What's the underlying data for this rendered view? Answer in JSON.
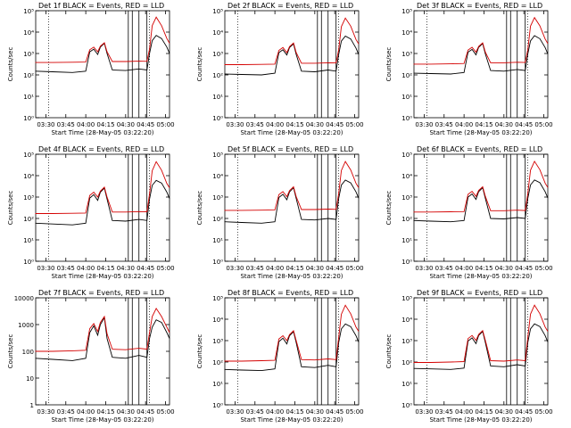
{
  "figure": {
    "xlabel": "Start Time (28-May-05 03:22:20)",
    "ylabel": "Counts/sec",
    "legend_text": "BLACK = Events, RED = LLD",
    "x_ticks": [
      "03:30",
      "03:45",
      "04:00",
      "04:15",
      "04:30",
      "04:45",
      "05:00"
    ],
    "colors": {
      "events": "#000000",
      "lld": "#d40000",
      "axes": "#000000"
    }
  },
  "chart_data": [
    {
      "type": "line",
      "title": "Det 1f BLACK = Events, RED = LLD",
      "xlabel": "Start Time (28-May-05 03:22:20)",
      "ylabel": "Counts/sec",
      "xlim": [
        "03:22:20",
        "05:03:00"
      ],
      "ylim": [
        1,
        100000
      ],
      "yscale": "log",
      "y_ticks": [
        "10^0",
        "10^1",
        "10^2",
        "10^3",
        "10^4",
        "10^5"
      ],
      "dotted_lines_x": [
        "03:32",
        "04:48"
      ],
      "solid_lines_x": [
        "04:32",
        "04:35",
        "04:40",
        "04:46"
      ],
      "x": [
        "03:22",
        "03:35",
        "03:50",
        "04:00",
        "04:03",
        "04:06",
        "04:09",
        "04:11",
        "04:14",
        "04:16",
        "04:20",
        "04:30",
        "04:40",
        "04:46",
        "04:48",
        "04:50",
        "04:53",
        "04:57",
        "05:01",
        "05:03"
      ],
      "series": [
        {
          "name": "Events",
          "values": [
            150,
            140,
            130,
            150,
            1200,
            1600,
            900,
            2000,
            3000,
            1000,
            170,
            160,
            190,
            170,
            1000,
            4000,
            7000,
            5000,
            2000,
            1000
          ]
        },
        {
          "name": "LLD",
          "values": [
            380,
            380,
            390,
            400,
            1500,
            2000,
            1200,
            2200,
            3200,
            1200,
            420,
            420,
            440,
            430,
            1600,
            20000,
            50000,
            20000,
            5000,
            3000
          ]
        }
      ]
    },
    {
      "type": "line",
      "title": "Det 2f BLACK = Events, RED = LLD",
      "xlabel": "Start Time (28-May-05 03:22:20)",
      "ylabel": "Counts/sec",
      "xlim": [
        "03:22:20",
        "05:03:00"
      ],
      "ylim": [
        1,
        100000
      ],
      "yscale": "log",
      "y_ticks": [
        "10^0",
        "10^1",
        "10^2",
        "10^3",
        "10^4",
        "10^5"
      ],
      "dotted_lines_x": [
        "03:32",
        "04:48"
      ],
      "solid_lines_x": [
        "04:32",
        "04:35",
        "04:40",
        "04:46"
      ],
      "x": [
        "03:22",
        "03:35",
        "03:50",
        "04:00",
        "04:03",
        "04:06",
        "04:09",
        "04:11",
        "04:14",
        "04:16",
        "04:20",
        "04:30",
        "04:40",
        "04:46",
        "04:48",
        "04:50",
        "04:53",
        "04:57",
        "05:01",
        "05:03"
      ],
      "series": [
        {
          "name": "Events",
          "values": [
            110,
            105,
            100,
            120,
            1100,
            1500,
            850,
            1900,
            2800,
            900,
            150,
            140,
            170,
            150,
            900,
            3800,
            6500,
            4800,
            1800,
            900
          ]
        },
        {
          "name": "LLD",
          "values": [
            300,
            300,
            310,
            320,
            1400,
            1900,
            1100,
            2100,
            3100,
            1100,
            350,
            350,
            370,
            360,
            1500,
            18000,
            45000,
            19000,
            4500,
            2800
          ]
        }
      ]
    },
    {
      "type": "line",
      "title": "Det 3f BLACK = Events, RED = LLD",
      "xlabel": "Start Time (28-May-05 03:22:20)",
      "ylabel": "Counts/sec",
      "xlim": [
        "03:22:20",
        "05:03:00"
      ],
      "ylim": [
        1,
        100000
      ],
      "yscale": "log",
      "y_ticks": [
        "10^0",
        "10^1",
        "10^2",
        "10^3",
        "10^4",
        "10^5"
      ],
      "dotted_lines_x": [
        "03:32",
        "04:48"
      ],
      "solid_lines_x": [
        "04:32",
        "04:35",
        "04:40",
        "04:46"
      ],
      "x": [
        "03:22",
        "03:35",
        "03:50",
        "04:00",
        "04:03",
        "04:06",
        "04:09",
        "04:11",
        "04:14",
        "04:16",
        "04:20",
        "04:30",
        "04:40",
        "04:46",
        "04:48",
        "04:50",
        "04:53",
        "04:57",
        "05:01",
        "05:03"
      ],
      "series": [
        {
          "name": "Events",
          "values": [
            120,
            115,
            110,
            130,
            1150,
            1550,
            870,
            1950,
            2900,
            950,
            160,
            150,
            180,
            160,
            950,
            3900,
            6800,
            4900,
            1900,
            950
          ]
        },
        {
          "name": "LLD",
          "values": [
            320,
            320,
            330,
            340,
            1450,
            1950,
            1150,
            2150,
            3150,
            1150,
            370,
            370,
            390,
            380,
            1550,
            19000,
            48000,
            19500,
            4800,
            2900
          ]
        }
      ]
    },
    {
      "type": "line",
      "title": "Det 4f BLACK = Events, RED = LLD",
      "xlabel": "Start Time (28-May-05 03:22:20)",
      "ylabel": "Counts/sec",
      "xlim": [
        "03:22:20",
        "05:03:00"
      ],
      "ylim": [
        1,
        100000
      ],
      "yscale": "log",
      "y_ticks": [
        "10^0",
        "10^1",
        "10^2",
        "10^3",
        "10^4",
        "10^5"
      ],
      "dotted_lines_x": [
        "03:32",
        "04:48"
      ],
      "solid_lines_x": [
        "04:32",
        "04:35",
        "04:40",
        "04:46"
      ],
      "x": [
        "03:22",
        "03:35",
        "03:50",
        "04:00",
        "04:03",
        "04:06",
        "04:09",
        "04:11",
        "04:14",
        "04:16",
        "04:20",
        "04:30",
        "04:40",
        "04:46",
        "04:48",
        "04:50",
        "04:53",
        "04:57",
        "05:01",
        "05:03"
      ],
      "series": [
        {
          "name": "Events",
          "values": [
            60,
            55,
            50,
            60,
            900,
            1300,
            700,
            1700,
            2600,
            800,
            80,
            75,
            90,
            80,
            800,
            3500,
            6000,
            4500,
            1700,
            850
          ]
        },
        {
          "name": "LLD",
          "values": [
            170,
            170,
            175,
            180,
            1200,
            1700,
            1000,
            1900,
            2900,
            1000,
            200,
            200,
            210,
            205,
            1400,
            17000,
            45000,
            18000,
            4300,
            2700
          ]
        }
      ]
    },
    {
      "type": "line",
      "title": "Det 5f BLACK = Events, RED = LLD",
      "xlabel": "Start Time (28-May-05 03:22:20)",
      "ylabel": "Counts/sec",
      "xlim": [
        "03:22:20",
        "05:03:00"
      ],
      "ylim": [
        1,
        100000
      ],
      "yscale": "log",
      "y_ticks": [
        "10^0",
        "10^1",
        "10^2",
        "10^3",
        "10^4",
        "10^5"
      ],
      "dotted_lines_x": [
        "03:32",
        "04:48"
      ],
      "solid_lines_x": [
        "04:32",
        "04:35",
        "04:40",
        "04:46"
      ],
      "x": [
        "03:22",
        "03:35",
        "03:50",
        "04:00",
        "04:03",
        "04:06",
        "04:09",
        "04:11",
        "04:14",
        "04:16",
        "04:20",
        "04:30",
        "04:40",
        "04:46",
        "04:48",
        "04:50",
        "04:53",
        "04:57",
        "05:01",
        "05:03"
      ],
      "series": [
        {
          "name": "Events",
          "values": [
            70,
            65,
            60,
            70,
            950,
            1350,
            750,
            1750,
            2700,
            850,
            90,
            85,
            100,
            90,
            850,
            3600,
            6200,
            4600,
            1750,
            880
          ]
        },
        {
          "name": "LLD",
          "values": [
            240,
            240,
            245,
            250,
            1300,
            1800,
            1050,
            2000,
            3000,
            1050,
            260,
            260,
            275,
            265,
            1450,
            17500,
            46000,
            18500,
            4400,
            2750
          ]
        }
      ]
    },
    {
      "type": "line",
      "title": "Det 6f BLACK = Events, RED = LLD",
      "xlabel": "Start Time (28-May-05 03:22:20)",
      "ylabel": "Counts/sec",
      "xlim": [
        "03:22:20",
        "05:03:00"
      ],
      "ylim": [
        1,
        100000
      ],
      "yscale": "log",
      "y_ticks": [
        "10^0",
        "10^1",
        "10^2",
        "10^3",
        "10^4",
        "10^5"
      ],
      "dotted_lines_x": [
        "03:32",
        "04:48"
      ],
      "solid_lines_x": [
        "04:32",
        "04:35",
        "04:40",
        "04:46"
      ],
      "x": [
        "03:22",
        "03:35",
        "03:50",
        "04:00",
        "04:03",
        "04:06",
        "04:09",
        "04:11",
        "04:14",
        "04:16",
        "04:20",
        "04:30",
        "04:40",
        "04:46",
        "04:48",
        "04:50",
        "04:53",
        "04:57",
        "05:01",
        "05:03"
      ],
      "series": [
        {
          "name": "Events",
          "values": [
            80,
            75,
            70,
            80,
            1000,
            1400,
            780,
            1800,
            2750,
            870,
            100,
            95,
            110,
            100,
            870,
            3700,
            6300,
            4700,
            1800,
            900
          ]
        },
        {
          "name": "LLD",
          "values": [
            200,
            200,
            205,
            210,
            1350,
            1850,
            1080,
            2050,
            3050,
            1080,
            230,
            230,
            245,
            235,
            1480,
            18000,
            47000,
            19000,
            4500,
            2800
          ]
        }
      ]
    },
    {
      "type": "line",
      "title": "Det 7f BLACK = Events, RED = LLD",
      "xlabel": "Start Time (28-May-05 03:22:20)",
      "ylabel": "Counts/sec",
      "xlim": [
        "03:22:20",
        "05:03:00"
      ],
      "ylim": [
        1,
        10000
      ],
      "yscale": "log",
      "y_ticks": [
        "1",
        "10",
        "100",
        "1000",
        "10000"
      ],
      "dotted_lines_x": [
        "03:32",
        "04:48"
      ],
      "solid_lines_x": [
        "04:32",
        "04:35",
        "04:40",
        "04:46"
      ],
      "x": [
        "03:22",
        "03:35",
        "03:50",
        "04:00",
        "04:03",
        "04:06",
        "04:09",
        "04:11",
        "04:14",
        "04:16",
        "04:20",
        "04:30",
        "04:40",
        "04:46",
        "04:48",
        "04:50",
        "04:53",
        "04:57",
        "05:01",
        "05:03"
      ],
      "series": [
        {
          "name": "Events",
          "values": [
            55,
            50,
            45,
            55,
            500,
            900,
            400,
            1000,
            1800,
            300,
            60,
            55,
            70,
            60,
            300,
            800,
            1500,
            1200,
            500,
            300
          ]
        },
        {
          "name": "LLD",
          "values": [
            100,
            100,
            105,
            110,
            700,
            1100,
            550,
            1200,
            2000,
            450,
            120,
            115,
            130,
            120,
            500,
            2000,
            4000,
            2000,
            800,
            500
          ]
        }
      ]
    },
    {
      "type": "line",
      "title": "Det 8f BLACK = Events, RED = LLD",
      "xlabel": "Start Time (28-May-05 03:22:20)",
      "ylabel": "Counts/sec",
      "xlim": [
        "03:22:20",
        "05:03:00"
      ],
      "ylim": [
        1,
        100000
      ],
      "yscale": "log",
      "y_ticks": [
        "10^0",
        "10^1",
        "10^2",
        "10^3",
        "10^4",
        "10^5"
      ],
      "dotted_lines_x": [
        "03:32",
        "04:48"
      ],
      "solid_lines_x": [
        "04:32",
        "04:35",
        "04:40",
        "04:46"
      ],
      "x": [
        "03:22",
        "03:35",
        "03:50",
        "04:00",
        "04:03",
        "04:06",
        "04:09",
        "04:11",
        "04:14",
        "04:16",
        "04:20",
        "04:30",
        "04:40",
        "04:46",
        "04:48",
        "04:50",
        "04:53",
        "04:57",
        "05:01",
        "05:03"
      ],
      "series": [
        {
          "name": "Events",
          "values": [
            45,
            42,
            40,
            48,
            900,
            1300,
            700,
            1700,
            2600,
            800,
            60,
            55,
            70,
            60,
            800,
            3500,
            6000,
            4500,
            1700,
            850
          ]
        },
        {
          "name": "LLD",
          "values": [
            110,
            110,
            115,
            120,
            1200,
            1700,
            1000,
            1900,
            2900,
            1000,
            130,
            125,
            140,
            130,
            1400,
            17000,
            45000,
            18000,
            4300,
            2700
          ]
        }
      ]
    },
    {
      "type": "line",
      "title": "Det 9f BLACK = Events, RED = LLD",
      "xlabel": "Start Time (28-May-05 03:22:20)",
      "ylabel": "Counts/sec",
      "xlim": [
        "03:22:20",
        "05:03:00"
      ],
      "ylim": [
        1,
        100000
      ],
      "yscale": "log",
      "y_ticks": [
        "10^0",
        "10^1",
        "10^2",
        "10^3",
        "10^4",
        "10^5"
      ],
      "dotted_lines_x": [
        "03:32",
        "04:48"
      ],
      "solid_lines_x": [
        "04:32",
        "04:35",
        "04:40",
        "04:46"
      ],
      "x": [
        "03:22",
        "03:35",
        "03:50",
        "04:00",
        "04:03",
        "04:06",
        "04:09",
        "04:11",
        "04:14",
        "04:16",
        "04:20",
        "04:30",
        "04:40",
        "04:46",
        "04:48",
        "04:50",
        "04:53",
        "04:57",
        "05:01",
        "05:03"
      ],
      "series": [
        {
          "name": "Events",
          "values": [
            50,
            48,
            45,
            52,
            950,
            1350,
            720,
            1750,
            2650,
            820,
            65,
            60,
            75,
            65,
            820,
            3550,
            6100,
            4550,
            1720,
            860
          ]
        },
        {
          "name": "LLD",
          "values": [
            95,
            95,
            100,
            105,
            1250,
            1750,
            1020,
            1950,
            2950,
            1020,
            115,
            110,
            125,
            115,
            1420,
            17200,
            45500,
            18200,
            4350,
            2720
          ]
        }
      ]
    }
  ]
}
